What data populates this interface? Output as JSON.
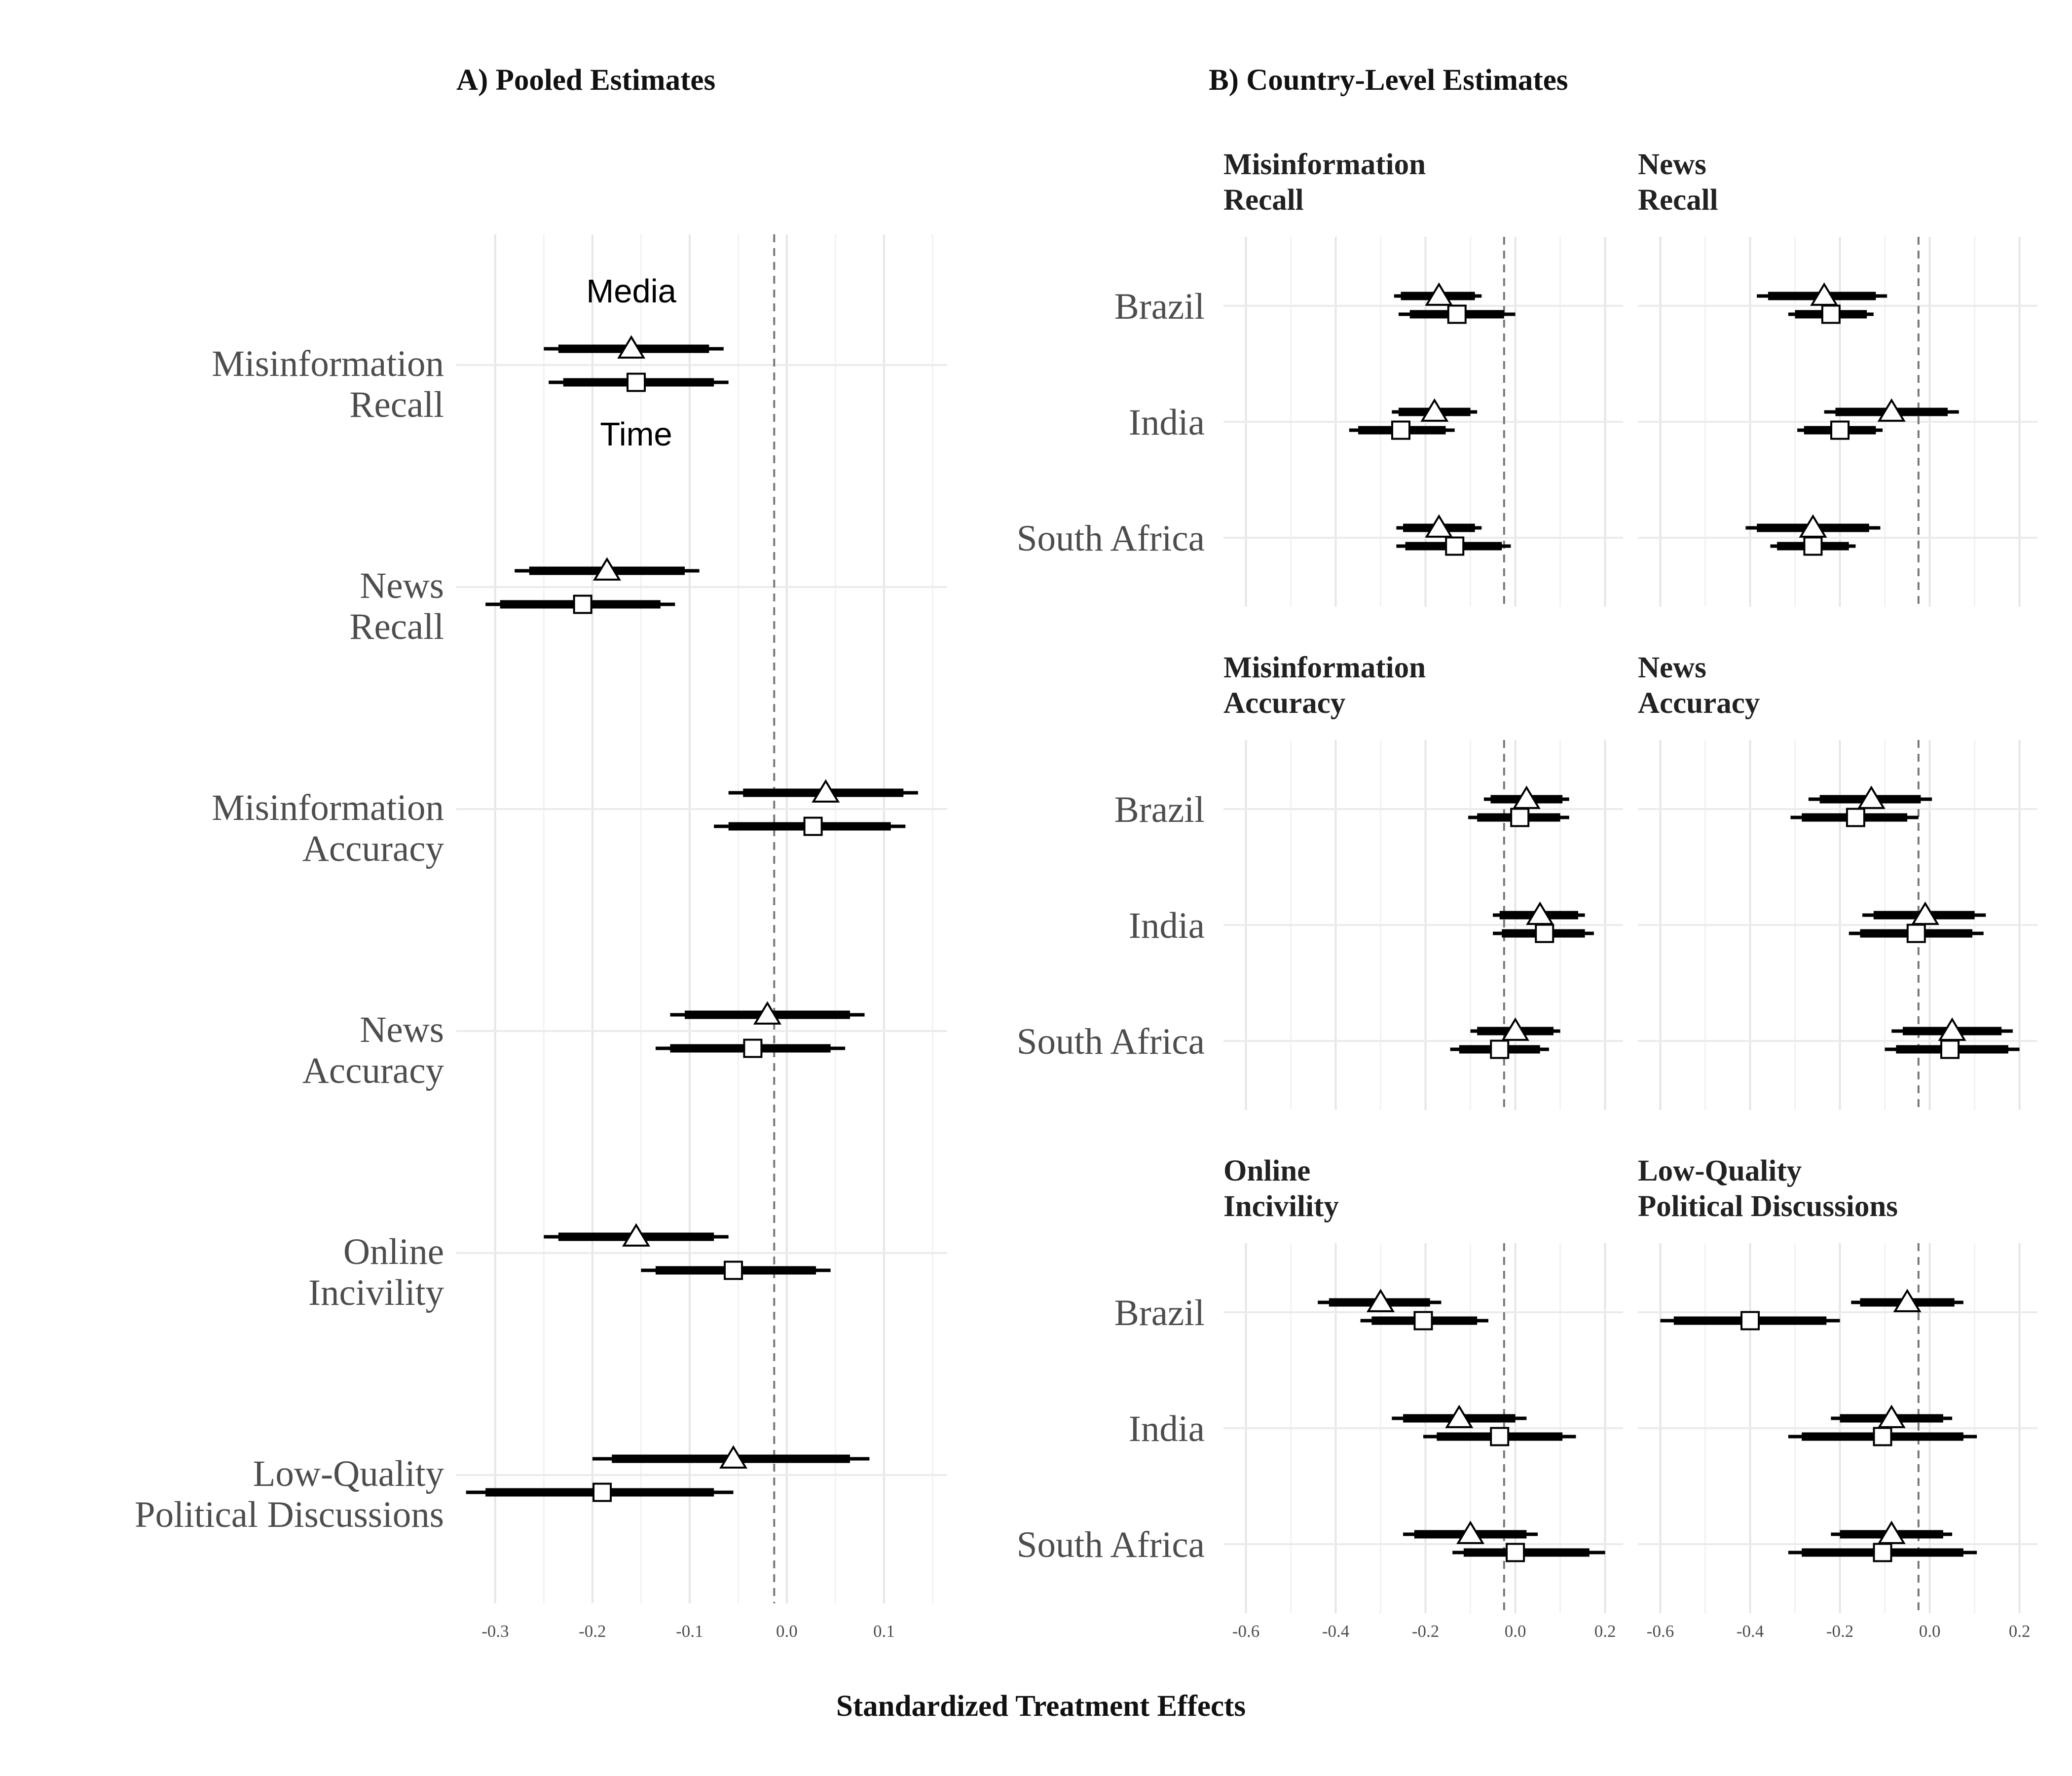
{
  "figure": {
    "panel_a_title": "A) Pooled Estimates",
    "panel_b_title": "B) Country-Level Estimates",
    "x_axis_label": "Standardized Treatment Effects",
    "annotations": {
      "media": "Media",
      "time": "Time"
    }
  },
  "chart_data": [
    {
      "type": "coefficient-plot",
      "panel": "A) Pooled Estimates",
      "xlim": [
        -0.34,
        0.165
      ],
      "xticks": [
        -0.3,
        -0.2,
        -0.1,
        0.0,
        0.1
      ],
      "xtick_labels": [
        "-0.3",
        "-0.2",
        "-0.1",
        "0.0",
        "0.1"
      ],
      "reference_line": -0.013,
      "grid": true,
      "marker_legend": {
        "triangle": "Media",
        "square": "Time"
      },
      "outcomes": [
        {
          "label": [
            "Misinformation",
            "Recall"
          ],
          "media": {
            "est": -0.16,
            "ci95": [
              -0.25,
              -0.065
            ],
            "ci90": [
              -0.235,
              -0.08
            ]
          },
          "time": {
            "est": -0.155,
            "ci95": [
              -0.245,
              -0.06
            ],
            "ci90": [
              -0.23,
              -0.075
            ]
          }
        },
        {
          "label": [
            "News",
            "Recall"
          ],
          "media": {
            "est": -0.185,
            "ci95": [
              -0.28,
              -0.09
            ],
            "ci90": [
              -0.265,
              -0.105
            ]
          },
          "time": {
            "est": -0.21,
            "ci95": [
              -0.31,
              -0.115
            ],
            "ci90": [
              -0.295,
              -0.13
            ]
          }
        },
        {
          "label": [
            "Misinformation",
            "Accuracy"
          ],
          "media": {
            "est": 0.04,
            "ci95": [
              -0.06,
              0.135
            ],
            "ci90": [
              -0.045,
              0.12
            ]
          },
          "time": {
            "est": 0.027,
            "ci95": [
              -0.075,
              0.122
            ],
            "ci90": [
              -0.06,
              0.107
            ]
          }
        },
        {
          "label": [
            "News",
            "Accuracy"
          ],
          "media": {
            "est": -0.02,
            "ci95": [
              -0.12,
              0.08
            ],
            "ci90": [
              -0.105,
              0.065
            ]
          },
          "time": {
            "est": -0.035,
            "ci95": [
              -0.135,
              0.06
            ],
            "ci90": [
              -0.12,
              0.045
            ]
          }
        },
        {
          "label": [
            "Online",
            "Incivility"
          ],
          "media": {
            "est": -0.155,
            "ci95": [
              -0.25,
              -0.06
            ],
            "ci90": [
              -0.235,
              -0.075
            ]
          },
          "time": {
            "est": -0.055,
            "ci95": [
              -0.15,
              0.045
            ],
            "ci90": [
              -0.135,
              0.03
            ]
          }
        },
        {
          "label": [
            "Low-Quality",
            "Political Discussions"
          ],
          "media": {
            "est": -0.055,
            "ci95": [
              -0.2,
              0.085
            ],
            "ci90": [
              -0.18,
              0.065
            ]
          },
          "time": {
            "est": -0.19,
            "ci95": [
              -0.33,
              -0.055
            ],
            "ci90": [
              -0.31,
              -0.075
            ]
          }
        }
      ]
    },
    {
      "type": "coefficient-plot",
      "panel": "B) Country-Level Estimates",
      "xlim": [
        -0.65,
        0.24
      ],
      "xticks": [
        -0.6,
        -0.4,
        -0.2,
        0.0,
        0.2
      ],
      "xtick_labels": [
        "-0.6",
        "-0.4",
        "-0.2",
        "0.0",
        "0.2"
      ],
      "reference_line": -0.025,
      "grid": true,
      "countries": [
        "Brazil",
        "India",
        "South Africa"
      ],
      "facets": [
        {
          "title": [
            "Misinformation",
            "Recall"
          ],
          "rows": [
            {
              "media": {
                "est": -0.17,
                "ci95": [
                  -0.27,
                  -0.075
                ],
                "ci90": [
                  -0.255,
                  -0.09
                ]
              },
              "time": {
                "est": -0.13,
                "ci95": [
                  -0.26,
                  0.0
                ],
                "ci90": [
                  -0.235,
                  -0.025
                ]
              }
            },
            {
              "media": {
                "est": -0.18,
                "ci95": [
                  -0.275,
                  -0.085
                ],
                "ci90": [
                  -0.26,
                  -0.1
                ]
              },
              "time": {
                "est": -0.255,
                "ci95": [
                  -0.37,
                  -0.135
                ],
                "ci90": [
                  -0.35,
                  -0.155
                ]
              }
            },
            {
              "media": {
                "est": -0.17,
                "ci95": [
                  -0.265,
                  -0.075
                ],
                "ci90": [
                  -0.25,
                  -0.09
                ]
              },
              "time": {
                "est": -0.135,
                "ci95": [
                  -0.265,
                  -0.01
                ],
                "ci90": [
                  -0.245,
                  -0.03
                ]
              }
            }
          ]
        },
        {
          "title": [
            "News",
            "Recall"
          ],
          "rows": [
            {
              "media": {
                "est": -0.235,
                "ci95": [
                  -0.385,
                  -0.095
                ],
                "ci90": [
                  -0.36,
                  -0.12
                ]
              },
              "time": {
                "est": -0.22,
                "ci95": [
                  -0.315,
                  -0.125
                ],
                "ci90": [
                  -0.3,
                  -0.14
                ]
              }
            },
            {
              "media": {
                "est": -0.085,
                "ci95": [
                  -0.235,
                  0.065
                ],
                "ci90": [
                  -0.21,
                  0.04
                ]
              },
              "time": {
                "est": -0.2,
                "ci95": [
                  -0.295,
                  -0.105
                ],
                "ci90": [
                  -0.28,
                  -0.12
                ]
              }
            },
            {
              "media": {
                "est": -0.26,
                "ci95": [
                  -0.41,
                  -0.11
                ],
                "ci90": [
                  -0.385,
                  -0.135
                ]
              },
              "time": {
                "est": -0.26,
                "ci95": [
                  -0.355,
                  -0.165
                ],
                "ci90": [
                  -0.34,
                  -0.18
                ]
              }
            }
          ]
        },
        {
          "title": [
            "Misinformation",
            "Accuracy"
          ],
          "rows": [
            {
              "media": {
                "est": 0.025,
                "ci95": [
                  -0.07,
                  0.12
                ],
                "ci90": [
                  -0.055,
                  0.105
                ]
              },
              "time": {
                "est": 0.01,
                "ci95": [
                  -0.105,
                  0.12
                ],
                "ci90": [
                  -0.085,
                  0.1
                ]
              }
            },
            {
              "media": {
                "est": 0.055,
                "ci95": [
                  -0.05,
                  0.155
                ],
                "ci90": [
                  -0.035,
                  0.14
                ]
              },
              "time": {
                "est": 0.065,
                "ci95": [
                  -0.05,
                  0.175
                ],
                "ci90": [
                  -0.03,
                  0.155
                ]
              }
            },
            {
              "media": {
                "est": 0.0,
                "ci95": [
                  -0.1,
                  0.1
                ],
                "ci90": [
                  -0.085,
                  0.085
                ]
              },
              "time": {
                "est": -0.035,
                "ci95": [
                  -0.145,
                  0.075
                ],
                "ci90": [
                  -0.125,
                  0.055
                ]
              }
            }
          ]
        },
        {
          "title": [
            "News",
            "Accuracy"
          ],
          "rows": [
            {
              "media": {
                "est": -0.13,
                "ci95": [
                  -0.27,
                  0.005
                ],
                "ci90": [
                  -0.245,
                  -0.02
                ]
              },
              "time": {
                "est": -0.165,
                "ci95": [
                  -0.31,
                  -0.025
                ],
                "ci90": [
                  -0.285,
                  -0.05
                ]
              }
            },
            {
              "media": {
                "est": -0.01,
                "ci95": [
                  -0.15,
                  0.125
                ],
                "ci90": [
                  -0.125,
                  0.1
                ]
              },
              "time": {
                "est": -0.03,
                "ci95": [
                  -0.18,
                  0.12
                ],
                "ci90": [
                  -0.155,
                  0.095
                ]
              }
            },
            {
              "media": {
                "est": 0.05,
                "ci95": [
                  -0.085,
                  0.185
                ],
                "ci90": [
                  -0.06,
                  0.16
                ]
              },
              "time": {
                "est": 0.045,
                "ci95": [
                  -0.1,
                  0.2
                ],
                "ci90": [
                  -0.075,
                  0.175
                ]
              }
            }
          ]
        },
        {
          "title": [
            "Online",
            "Incivility"
          ],
          "rows": [
            {
              "media": {
                "est": -0.3,
                "ci95": [
                  -0.44,
                  -0.165
                ],
                "ci90": [
                  -0.415,
                  -0.19
                ]
              },
              "time": {
                "est": -0.205,
                "ci95": [
                  -0.345,
                  -0.06
                ],
                "ci90": [
                  -0.32,
                  -0.085
                ]
              }
            },
            {
              "media": {
                "est": -0.125,
                "ci95": [
                  -0.275,
                  0.025
                ],
                "ci90": [
                  -0.25,
                  0.0
                ]
              },
              "time": {
                "est": -0.035,
                "ci95": [
                  -0.205,
                  0.135
                ],
                "ci90": [
                  -0.175,
                  0.105
                ]
              }
            },
            {
              "media": {
                "est": -0.1,
                "ci95": [
                  -0.25,
                  0.05
                ],
                "ci90": [
                  -0.225,
                  0.025
                ]
              },
              "time": {
                "est": 0.0,
                "ci95": [
                  -0.14,
                  0.2
                ],
                "ci90": [
                  -0.115,
                  0.165
                ]
              }
            }
          ]
        },
        {
          "title": [
            "Low-Quality",
            "Political Discussions"
          ],
          "rows": [
            {
              "media": {
                "est": -0.05,
                "ci95": [
                  -0.175,
                  0.075
                ],
                "ci90": [
                  -0.155,
                  0.055
                ]
              },
              "time": {
                "est": -0.4,
                "ci95": [
                  -0.6,
                  -0.2
                ],
                "ci90": [
                  -0.57,
                  -0.23
                ]
              }
            },
            {
              "media": {
                "est": -0.085,
                "ci95": [
                  -0.22,
                  0.05
                ],
                "ci90": [
                  -0.2,
                  0.03
                ]
              },
              "time": {
                "est": -0.105,
                "ci95": [
                  -0.315,
                  0.105
                ],
                "ci90": [
                  -0.285,
                  0.075
                ]
              }
            },
            {
              "media": {
                "est": -0.085,
                "ci95": [
                  -0.22,
                  0.05
                ],
                "ci90": [
                  -0.2,
                  0.03
                ]
              },
              "time": {
                "est": -0.105,
                "ci95": [
                  -0.315,
                  0.105
                ],
                "ci90": [
                  -0.285,
                  0.075
                ]
              }
            }
          ]
        }
      ]
    }
  ]
}
